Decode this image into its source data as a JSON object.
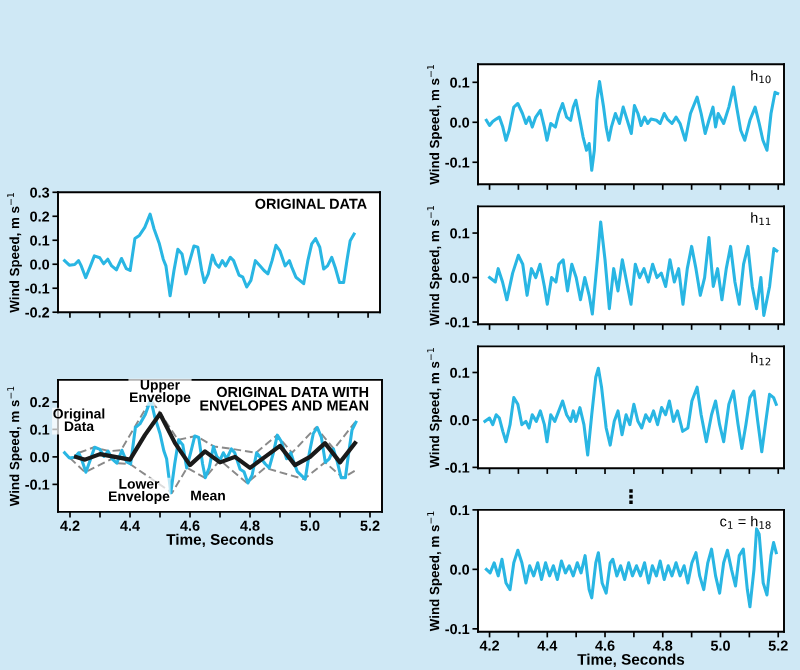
{
  "chart_data": [
    {
      "type": "line",
      "title": "ORIGINAL DATA",
      "ylabel": "Wind Speed, m s$^{−1}$",
      "xlim": [
        4.16,
        5.24
      ],
      "ylim": [
        -0.2,
        0.3
      ],
      "xticks": [
        4.2,
        4.3,
        4.4,
        4.5,
        4.6,
        4.7,
        4.8,
        4.9,
        5.0,
        5.1,
        5.2
      ],
      "yticks": [
        {
          "value": 0.3,
          "label": "0.3"
        },
        {
          "value": 0.2,
          "label": "0.2"
        },
        {
          "value": 0.1,
          "label": "0.1"
        },
        {
          "value": 0,
          "label": "0.0"
        },
        {
          "value": -0.1,
          "label": "-0.1"
        },
        {
          "value": -0.2,
          "label": "-0.2"
        }
      ],
      "tick_labels": "y",
      "series": [
        {
          "color": "#29b6e3",
          "line_style": "solid",
          "x": [
            4.182,
            4.198,
            4.216,
            4.229,
            4.238,
            4.253,
            4.269,
            4.282,
            4.3,
            4.313,
            4.327,
            4.34,
            4.356,
            4.373,
            4.389,
            4.402,
            4.418,
            4.433,
            4.451,
            4.469,
            4.482,
            4.5,
            4.513,
            4.522,
            4.536,
            4.549,
            4.562,
            4.576,
            4.589,
            4.602,
            4.616,
            4.629,
            4.642,
            4.651,
            4.664,
            4.678,
            4.689,
            4.7,
            4.711,
            4.722,
            4.738,
            4.749,
            4.767,
            4.78,
            4.793,
            4.807,
            4.822,
            4.838,
            4.851,
            4.864,
            4.878,
            4.891,
            4.904,
            4.922,
            4.936,
            4.944,
            4.958,
            4.971,
            4.984,
            4.998,
            5.011,
            5.024,
            5.038,
            5.051,
            5.064,
            5.078,
            5.091,
            5.104,
            5.118,
            5.129,
            5.14,
            5.153
          ],
          "values": [
            0.015,
            -0.004,
            -0.001,
            0.015,
            -0.007,
            -0.056,
            -0.007,
            0.035,
            0.027,
            0.002,
            0.021,
            -0.007,
            -0.023,
            0.024,
            -0.018,
            -0.026,
            0.107,
            0.12,
            0.154,
            0.209,
            0.148,
            0.085,
            0.021,
            -0.007,
            -0.131,
            -0.026,
            0.062,
            0.043,
            -0.04,
            0.015,
            0.076,
            0.071,
            -0.026,
            -0.076,
            -0.04,
            0.038,
            0.002,
            -0.012,
            0.015,
            -0.007,
            0.029,
            0.015,
            -0.045,
            -0.054,
            -0.095,
            -0.067,
            0.015,
            -0.007,
            -0.026,
            -0.04,
            0.015,
            0.079,
            0.057,
            -0.007,
            0.015,
            -0.012,
            -0.054,
            -0.067,
            -0.081,
            0.015,
            0.085,
            0.107,
            0.071,
            -0.02,
            -0.007,
            0.029,
            -0.018,
            -0.076,
            -0.076,
            0.015,
            0.098,
            0.126
          ]
        }
      ]
    },
    {
      "type": "line",
      "title": "ORIGINAL DATA WITH\nENVELOPES AND MEAN",
      "xlabel": "Time, Seconds",
      "ylabel": "Wind Speed, m s$^{−1}$",
      "xlim": [
        4.16,
        5.24
      ],
      "ylim": [
        -0.2,
        0.28
      ],
      "xticks": [
        {
          "value": 4.2,
          "label": "4.2"
        },
        {
          "value": 4.3,
          "label": null
        },
        {
          "value": 4.4,
          "label": "4.4"
        },
        {
          "value": 4.5,
          "label": null
        },
        {
          "value": 4.6,
          "label": "4.6"
        },
        {
          "value": 4.7,
          "label": null
        },
        {
          "value": 4.8,
          "label": "4.8"
        },
        {
          "value": 4.9,
          "label": null
        },
        {
          "value": 5.0,
          "label": "5.0"
        },
        {
          "value": 5.1,
          "label": null
        },
        {
          "value": 5.2,
          "label": "5.2"
        }
      ],
      "yticks": [
        {
          "value": 0.2,
          "label": "0.2"
        },
        {
          "value": 0.1,
          "label": "0.1"
        },
        {
          "value": 0,
          "label": "0.0"
        },
        {
          "value": -0.1,
          "label": "-0.1"
        }
      ],
      "annotations": [
        {
          "text": "Original\nData",
          "x": 4.23,
          "y": 0.13
        },
        {
          "text": "Upper\nEnvelope",
          "x": 4.5,
          "y": 0.235
        },
        {
          "text": "Lower\nEnvelope",
          "x": 4.43,
          "y": -0.125
        },
        {
          "text": "Mean",
          "x": 4.66,
          "y": -0.145
        }
      ],
      "series": [
        {
          "color": "#8a8a8a",
          "line_style": "dashed",
          "x": [
            4.23,
            4.28,
            4.33,
            4.37,
            4.47,
            4.56,
            4.62,
            4.68,
            4.74,
            4.82,
            4.89,
            4.94,
            5.02,
            5.08,
            5.15
          ],
          "values": [
            0.015,
            0.035,
            0.021,
            0.024,
            0.209,
            0.062,
            0.076,
            0.038,
            0.029,
            0.015,
            0.079,
            0.015,
            0.107,
            0.029,
            0.126
          ]
        },
        {
          "color": "#8a8a8a",
          "line_style": "dashed",
          "x": [
            4.2,
            4.25,
            4.34,
            4.36,
            4.4,
            4.54,
            4.59,
            4.65,
            4.7,
            4.79,
            4.85,
            4.98,
            5.05,
            5.11,
            5.15
          ],
          "values": [
            -0.004,
            -0.056,
            -0.007,
            -0.023,
            -0.026,
            -0.131,
            -0.04,
            -0.076,
            -0.012,
            -0.095,
            -0.04,
            -0.081,
            -0.02,
            -0.076,
            -0.05
          ]
        },
        {
          "color": "#29b6e3",
          "line_style": "solid",
          "x": [
            4.182,
            4.198,
            4.216,
            4.229,
            4.238,
            4.253,
            4.269,
            4.282,
            4.3,
            4.313,
            4.327,
            4.34,
            4.356,
            4.373,
            4.389,
            4.402,
            4.418,
            4.433,
            4.451,
            4.469,
            4.482,
            4.5,
            4.513,
            4.522,
            4.536,
            4.549,
            4.562,
            4.576,
            4.589,
            4.602,
            4.616,
            4.629,
            4.642,
            4.651,
            4.664,
            4.678,
            4.689,
            4.7,
            4.711,
            4.722,
            4.738,
            4.749,
            4.767,
            4.78,
            4.793,
            4.807,
            4.822,
            4.838,
            4.851,
            4.864,
            4.878,
            4.891,
            4.904,
            4.922,
            4.936,
            4.944,
            4.958,
            4.971,
            4.984,
            4.998,
            5.011,
            5.024,
            5.038,
            5.051,
            5.064,
            5.078,
            5.091,
            5.104,
            5.118,
            5.129,
            5.14,
            5.153
          ],
          "values": [
            0.015,
            -0.004,
            -0.001,
            0.015,
            -0.007,
            -0.056,
            -0.007,
            0.035,
            0.027,
            0.002,
            0.021,
            -0.007,
            -0.023,
            0.024,
            -0.018,
            -0.026,
            0.107,
            0.12,
            0.154,
            0.209,
            0.148,
            0.085,
            0.021,
            -0.007,
            -0.131,
            -0.026,
            0.062,
            0.043,
            -0.04,
            0.015,
            0.076,
            0.071,
            -0.026,
            -0.076,
            -0.04,
            0.038,
            0.002,
            -0.012,
            0.015,
            -0.007,
            0.029,
            0.015,
            -0.045,
            -0.054,
            -0.095,
            -0.067,
            0.015,
            -0.007,
            -0.026,
            -0.04,
            0.015,
            0.079,
            0.057,
            -0.007,
            0.015,
            -0.012,
            -0.054,
            -0.067,
            -0.081,
            0.015,
            0.085,
            0.107,
            0.071,
            -0.02,
            -0.007,
            0.029,
            -0.018,
            -0.076,
            -0.076,
            0.015,
            0.098,
            0.126
          ]
        },
        {
          "color": "#1a1a1a",
          "line_style": "solid",
          "x": [
            4.22,
            4.25,
            4.3,
            4.35,
            4.4,
            4.45,
            4.5,
            4.55,
            4.6,
            4.65,
            4.7,
            4.75,
            4.8,
            4.85,
            4.9,
            4.95,
            5.0,
            5.05,
            5.1,
            5.15
          ],
          "values": [
            0.0,
            -0.01,
            0.01,
            0.0,
            -0.01,
            0.08,
            0.157,
            0.05,
            -0.03,
            0.02,
            -0.02,
            0.0,
            -0.04,
            0.0,
            0.04,
            -0.03,
            0.0,
            0.05,
            -0.02,
            0.05
          ]
        }
      ]
    },
    {
      "type": "line",
      "title": "h$_{10}$",
      "ylabel": "Wind Speed, m s$^{−1}$",
      "xlim": [
        4.16,
        5.22
      ],
      "ylim": [
        -0.155,
        0.145
      ],
      "xticks": [
        4.2,
        4.3,
        4.4,
        4.5,
        4.6,
        4.7,
        4.8,
        4.9,
        5.0,
        5.1,
        5.2
      ],
      "yticks": [
        {
          "value": 0.1,
          "label": "0.1"
        },
        {
          "value": 0,
          "label": "0.0"
        },
        {
          "value": -0.1,
          "label": "-0.1"
        }
      ],
      "tick_labels": "y",
      "series": [
        {
          "color": "#29b6e3",
          "line_style": "solid",
          "x": [
            4.189,
            4.2,
            4.211,
            4.223,
            4.234,
            4.246,
            4.257,
            4.268,
            4.284,
            4.298,
            4.314,
            4.326,
            4.337,
            4.348,
            4.36,
            4.376,
            4.39,
            4.399,
            4.412,
            4.428,
            4.44,
            4.453,
            4.467,
            4.481,
            4.49,
            4.499,
            4.513,
            4.524,
            4.536,
            4.545,
            4.554,
            4.563,
            4.572,
            4.581,
            4.595,
            4.604,
            4.613,
            4.622,
            4.636,
            4.65,
            4.663,
            4.677,
            4.691,
            4.702,
            4.714,
            4.725,
            4.737,
            4.748,
            4.759,
            4.778,
            4.791,
            4.805,
            4.816,
            4.832,
            4.846,
            4.86,
            4.878,
            4.896,
            4.919,
            4.933,
            4.947,
            4.96,
            4.974,
            4.983,
            4.992,
            5.011,
            5.029,
            5.045,
            5.056,
            5.07,
            5.084,
            5.102,
            5.12,
            5.134,
            5.147,
            5.161,
            5.175,
            5.189,
            5.198
          ],
          "values": [
            0.005,
            -0.008,
            0.002,
            0.008,
            0.013,
            -0.012,
            -0.045,
            -0.02,
            0.038,
            0.047,
            0.022,
            -0.003,
            0.013,
            -0.012,
            0.013,
            0.03,
            -0.012,
            -0.045,
            -0.003,
            -0.012,
            0.022,
            0.047,
            0.013,
            0.005,
            0.038,
            0.055,
            0.005,
            -0.037,
            -0.07,
            -0.053,
            -0.12,
            -0.07,
            0.055,
            0.102,
            0.038,
            -0.012,
            -0.045,
            -0.012,
            0.022,
            -0.003,
            0.038,
            0.005,
            -0.028,
            0.042,
            0.022,
            -0.008,
            0.013,
            -0.003,
            0.008,
            0.005,
            -0.003,
            0.022,
            0.008,
            -0.003,
            0.013,
            -0.003,
            -0.045,
            0.022,
            0.063,
            0.022,
            -0.028,
            0.005,
            0.038,
            -0.012,
            0.022,
            -0.003,
            0.038,
            0.088,
            0.038,
            -0.02,
            -0.045,
            0.005,
            0.038,
            -0.003,
            -0.045,
            -0.07,
            0.022,
            0.075,
            0.072
          ]
        }
      ]
    },
    {
      "type": "line",
      "title": "h$_{11}$",
      "ylabel": "Wind Speed, m s$^{−1}$",
      "xlim": [
        4.16,
        5.22
      ],
      "ylim": [
        -0.105,
        0.16
      ],
      "xticks": [
        4.2,
        4.3,
        4.4,
        4.5,
        4.6,
        4.7,
        4.8,
        4.9,
        5.0,
        5.1,
        5.2
      ],
      "yticks": [
        {
          "value": 0.1,
          "label": "0.1"
        },
        {
          "value": 0,
          "label": "0.0"
        },
        {
          "value": -0.1,
          "label": "-0.1"
        }
      ],
      "tick_labels": "y",
      "series": [
        {
          "color": "#29b6e3",
          "line_style": "solid",
          "x": [
            4.2,
            4.22,
            4.23,
            4.245,
            4.26,
            4.28,
            4.3,
            4.315,
            4.33,
            4.345,
            4.36,
            4.375,
            4.39,
            4.4,
            4.415,
            4.43,
            4.44,
            4.455,
            4.47,
            4.485,
            4.5,
            4.515,
            4.53,
            4.545,
            4.556,
            4.575,
            4.585,
            4.6,
            4.615,
            4.63,
            4.645,
            4.66,
            4.675,
            4.69,
            4.705,
            4.72,
            4.735,
            4.75,
            4.765,
            4.78,
            4.795,
            4.81,
            4.825,
            4.84,
            4.855,
            4.87,
            4.885,
            4.9,
            4.915,
            4.93,
            4.945,
            4.96,
            4.975,
            4.99,
            5.005,
            5.02,
            5.035,
            5.05,
            5.065,
            5.08,
            5.095,
            5.11,
            5.125,
            5.14,
            5.15,
            5.17,
            5.185,
            5.195
          ],
          "values": [
            0.0,
            -0.01,
            0.02,
            -0.01,
            -0.05,
            0.01,
            0.05,
            0.03,
            -0.04,
            0.02,
            0.0,
            0.03,
            -0.02,
            -0.06,
            0.0,
            -0.01,
            0.03,
            0.04,
            -0.03,
            0.03,
            0.0,
            -0.05,
            0.0,
            -0.04,
            -0.082,
            0.05,
            0.125,
            0.04,
            -0.07,
            0.02,
            -0.03,
            0.04,
            -0.01,
            -0.06,
            0.03,
            0.0,
            0.02,
            -0.01,
            0.03,
            0.0,
            0.01,
            -0.02,
            0.04,
            -0.01,
            0.02,
            -0.06,
            0.02,
            0.07,
            0.02,
            -0.04,
            0.0,
            0.09,
            -0.02,
            0.02,
            -0.05,
            0.02,
            0.07,
            -0.01,
            -0.06,
            0.03,
            0.07,
            -0.02,
            -0.07,
            0.0,
            -0.085,
            -0.02,
            0.065,
            0.06
          ]
        }
      ]
    },
    {
      "type": "line",
      "title": "h$_{12}$",
      "ylabel": "Wind Speed, m s$^{−1}$",
      "xlim": [
        4.16,
        5.22
      ],
      "ylim": [
        -0.102,
        0.155
      ],
      "xticks": [
        4.2,
        4.3,
        4.4,
        4.5,
        4.6,
        4.7,
        4.8,
        4.9,
        5.0,
        5.1,
        5.2
      ],
      "yticks": [
        {
          "value": 0.1,
          "label": "0.1"
        },
        {
          "value": 0,
          "label": "0.0"
        },
        {
          "value": -0.1,
          "label": "-0.1"
        }
      ],
      "tick_labels": "y",
      "series": [
        {
          "color": "#29b6e3",
          "line_style": "solid",
          "x": [
            4.184,
            4.2,
            4.211,
            4.223,
            4.234,
            4.246,
            4.257,
            4.271,
            4.284,
            4.298,
            4.312,
            4.326,
            4.337,
            4.348,
            4.362,
            4.376,
            4.39,
            4.399,
            4.412,
            4.426,
            4.44,
            4.453,
            4.467,
            4.481,
            4.49,
            4.499,
            4.513,
            4.527,
            4.54,
            4.554,
            4.568,
            4.577,
            4.588,
            4.604,
            4.618,
            4.632,
            4.645,
            4.659,
            4.673,
            4.686,
            4.7,
            4.714,
            4.727,
            4.741,
            4.755,
            4.768,
            4.782,
            4.796,
            4.81,
            4.823,
            4.837,
            4.851,
            4.869,
            4.887,
            4.901,
            4.919,
            4.933,
            4.951,
            4.969,
            4.983,
            4.997,
            5.011,
            5.029,
            5.045,
            5.061,
            5.074,
            5.088,
            5.102,
            5.116,
            5.129,
            5.143,
            5.157,
            5.17,
            5.184,
            5.193
          ],
          "values": [
            -0.003,
            0.004,
            -0.01,
            0.011,
            0.004,
            -0.024,
            -0.046,
            -0.01,
            0.047,
            0.033,
            -0.01,
            -0.003,
            -0.017,
            0.011,
            -0.003,
            0.019,
            -0.01,
            -0.046,
            0.011,
            -0.003,
            0.019,
            0.04,
            0.011,
            -0.003,
            0.019,
            -0.003,
            0.026,
            -0.01,
            -0.074,
            0.011,
            0.09,
            0.109,
            0.069,
            -0.017,
            -0.053,
            -0.003,
            0.019,
            -0.031,
            0.011,
            -0.01,
            0.033,
            -0.003,
            -0.017,
            0.011,
            -0.003,
            0.019,
            -0.01,
            0.026,
            0.011,
            0.04,
            -0.003,
            0.019,
            -0.024,
            -0.017,
            0.04,
            0.069,
            0.011,
            -0.046,
            0.011,
            0.04,
            -0.01,
            -0.046,
            0.033,
            0.061,
            -0.01,
            -0.06,
            -0.01,
            0.047,
            0.061,
            -0.003,
            -0.067,
            -0.003,
            0.054,
            0.047,
            0.033
          ]
        }
      ]
    },
    {
      "type": "line",
      "title": "c$_{1}$ = h$_{18}$",
      "xlabel": "Time, Seconds",
      "ylabel": "Wind Speed, m s$^{−1}$",
      "annotations": [
        "⋮"
      ],
      "xlim": [
        4.16,
        5.22
      ],
      "ylim": [
        -0.105,
        0.1
      ],
      "xticks": [
        {
          "value": 4.2,
          "label": "4.2"
        },
        {
          "value": 4.3,
          "label": null
        },
        {
          "value": 4.4,
          "label": "4.4"
        },
        {
          "value": 4.5,
          "label": null
        },
        {
          "value": 4.6,
          "label": "4.6"
        },
        {
          "value": 4.7,
          "label": null
        },
        {
          "value": 4.8,
          "label": "4.8"
        },
        {
          "value": 4.9,
          "label": null
        },
        {
          "value": 5.0,
          "label": "5.0"
        },
        {
          "value": 5.1,
          "label": null
        },
        {
          "value": 5.2,
          "label": "5.2"
        }
      ],
      "yticks": [
        {
          "value": 0.1,
          "label": "0.1"
        },
        {
          "value": 0,
          "label": "0.0"
        },
        {
          "value": -0.1,
          "label": "-0.1"
        }
      ],
      "series": [
        {
          "color": "#29b6e3",
          "line_style": "solid",
          "x": [
            4.189,
            4.202,
            4.216,
            4.23,
            4.243,
            4.257,
            4.271,
            4.284,
            4.298,
            4.312,
            4.326,
            4.339,
            4.353,
            4.367,
            4.38,
            4.394,
            4.408,
            4.421,
            4.435,
            4.449,
            4.463,
            4.476,
            4.49,
            4.504,
            4.517,
            4.531,
            4.545,
            4.554,
            4.568,
            4.577,
            4.59,
            4.604,
            4.618,
            4.627,
            4.641,
            4.654,
            4.668,
            4.682,
            4.695,
            4.709,
            4.723,
            4.737,
            4.751,
            4.764,
            4.778,
            4.791,
            4.805,
            4.819,
            4.832,
            4.846,
            4.86,
            4.874,
            4.887,
            4.901,
            4.915,
            4.928,
            4.942,
            4.956,
            4.969,
            4.983,
            4.997,
            5.011,
            5.024,
            5.038,
            5.052,
            5.065,
            5.079,
            5.093,
            5.102,
            5.116,
            5.125,
            5.134,
            5.148,
            5.161,
            5.175,
            5.184,
            5.193
          ],
          "values": [
            0.0,
            -0.006,
            0.011,
            -0.011,
            0.017,
            -0.023,
            -0.034,
            0.011,
            0.032,
            0.011,
            -0.023,
            0.006,
            -0.011,
            0.011,
            -0.017,
            0.011,
            -0.011,
            0.006,
            -0.017,
            0.014,
            -0.006,
            0.006,
            -0.011,
            0.011,
            -0.006,
            0.023,
            -0.034,
            -0.048,
            0.011,
            0.028,
            -0.023,
            -0.04,
            0.011,
            0.017,
            -0.011,
            0.006,
            -0.017,
            0.011,
            -0.011,
            0.006,
            -0.011,
            0.011,
            -0.023,
            0.006,
            -0.011,
            0.014,
            -0.017,
            0.006,
            -0.011,
            0.011,
            -0.011,
            0.006,
            -0.023,
            0.011,
            0.028,
            -0.011,
            -0.034,
            0.011,
            0.034,
            -0.011,
            -0.04,
            0.011,
            0.032,
            0.0,
            -0.028,
            0.023,
            0.034,
            -0.034,
            -0.063,
            0.0,
            0.068,
            0.059,
            -0.023,
            -0.043,
            0.023,
            0.045,
            0.028
          ]
        }
      ]
    }
  ]
}
